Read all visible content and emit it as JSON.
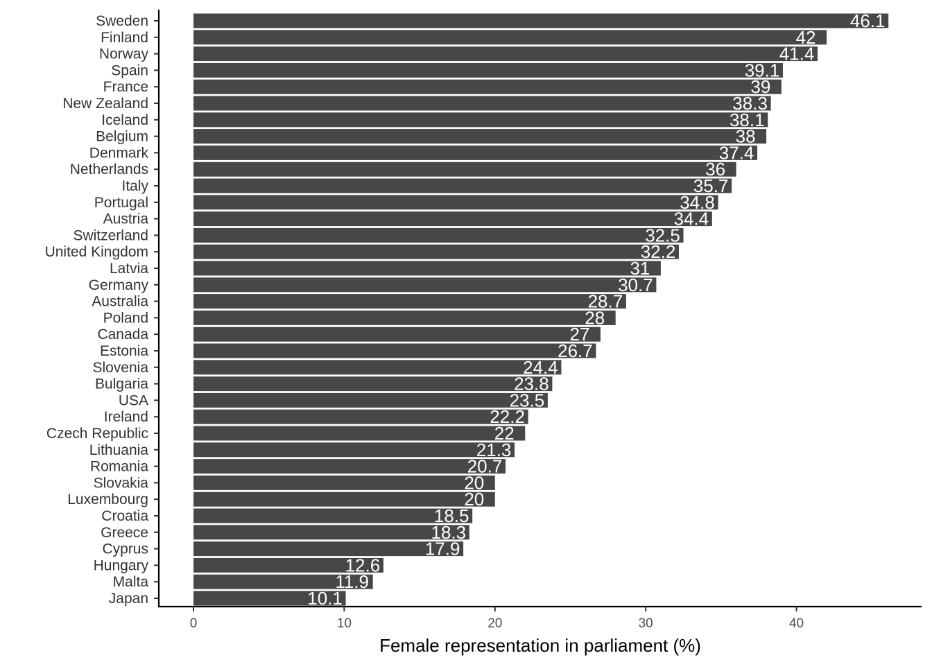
{
  "chart_data": {
    "type": "bar",
    "orientation": "horizontal",
    "title": "",
    "xlabel": "Female representation in parliament (%)",
    "ylabel": "",
    "xlim": [
      -2.3,
      48.3
    ],
    "x_ticks": [
      0,
      10,
      20,
      30,
      40
    ],
    "x_tick_labels": [
      "0",
      "10",
      "20",
      "30",
      "40"
    ],
    "grid": false,
    "legend": "none",
    "bar_color": "#474747",
    "label_color": "#ffffff",
    "categories": [
      "Sweden",
      "Finland",
      "Norway",
      "Spain",
      "France",
      "New Zealand",
      "Iceland",
      "Belgium",
      "Denmark",
      "Netherlands",
      "Italy",
      "Portugal",
      "Austria",
      "Switzerland",
      "United Kingdom",
      "Latvia",
      "Germany",
      "Australia",
      "Poland",
      "Canada",
      "Estonia",
      "Slovenia",
      "Bulgaria",
      "USA",
      "Ireland",
      "Czech Republic",
      "Lithuania",
      "Romania",
      "Slovakia",
      "Luxembourg",
      "Croatia",
      "Greece",
      "Cyprus",
      "Hungary",
      "Malta",
      "Japan"
    ],
    "values": [
      46.1,
      42,
      41.4,
      39.1,
      39,
      38.3,
      38.1,
      38,
      37.4,
      36,
      35.7,
      34.8,
      34.4,
      32.5,
      32.2,
      31,
      30.7,
      28.7,
      28,
      27,
      26.7,
      24.4,
      23.8,
      23.5,
      22.2,
      22,
      21.3,
      20.7,
      20,
      20,
      18.5,
      18.3,
      17.9,
      12.6,
      11.9,
      10.1
    ],
    "data_labels": [
      "46.1",
      "42",
      "41.4",
      "39.1",
      "39",
      "38.3",
      "38.1",
      "38",
      "37.4",
      "36",
      "35.7",
      "34.8",
      "34.4",
      "32.5",
      "32.2",
      "31",
      "30.7",
      "28.7",
      "28",
      "27",
      "26.7",
      "24.4",
      "23.8",
      "23.5",
      "22.2",
      "22",
      "21.3",
      "20.7",
      "20",
      "20",
      "18.5",
      "18.3",
      "17.9",
      "12.6",
      "11.9",
      "10.1"
    ]
  }
}
